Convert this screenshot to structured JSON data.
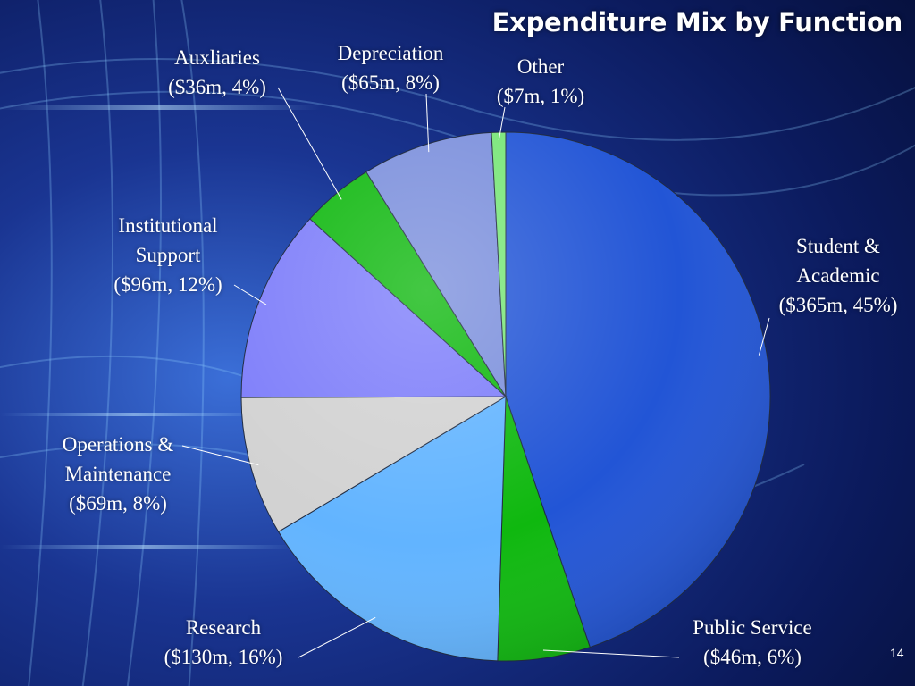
{
  "slide": {
    "title": "Expenditure Mix by Function",
    "page_number": "14"
  },
  "chart_data": {
    "type": "pie",
    "title": "Expenditure Mix by Function",
    "unit": "$m",
    "slices": [
      {
        "key": "student-academic",
        "name": "Student & Academic",
        "value": 365,
        "percent": 45,
        "line1": "Student &",
        "line2": "Academic",
        "line3": "($365m, 45%)",
        "color": "#2255d6"
      },
      {
        "key": "public-service",
        "name": "Public Service",
        "value": 46,
        "percent": 6,
        "line1": "Public Service",
        "line2": "($46m, 6%)",
        "color": "#0fb80f"
      },
      {
        "key": "research",
        "name": "Research",
        "value": 130,
        "percent": 16,
        "line1": "Research",
        "line2": "($130m, 16%)",
        "color": "#62b4ff"
      },
      {
        "key": "operations-maintenance",
        "name": "Operations & Maintenance",
        "value": 69,
        "percent": 8,
        "line1": "Operations &",
        "line2": "Maintenance",
        "line3": "($69m, 8%)",
        "color": "#d2d2d2"
      },
      {
        "key": "institutional-support",
        "name": "Institutional Support",
        "value": 96,
        "percent": 12,
        "line1": "Institutional",
        "line2": "Support",
        "line3": "($96m, 12%)",
        "color": "#7d7dfa"
      },
      {
        "key": "auxiliaries",
        "name": "Auxliaries",
        "value": 36,
        "percent": 4,
        "line1": "Auxliaries",
        "line2": "($36m, 4%)",
        "color": "#0fb80f"
      },
      {
        "key": "depreciation",
        "name": "Depreciation",
        "value": 65,
        "percent": 8,
        "line1": "Depreciation",
        "line2": "($65m, 8%)",
        "color": "#7b8fdc"
      },
      {
        "key": "other",
        "name": "Other",
        "value": 7,
        "percent": 1,
        "line1": "Other",
        "line2": "($7m, 1%)",
        "color": "#78e678"
      }
    ]
  }
}
